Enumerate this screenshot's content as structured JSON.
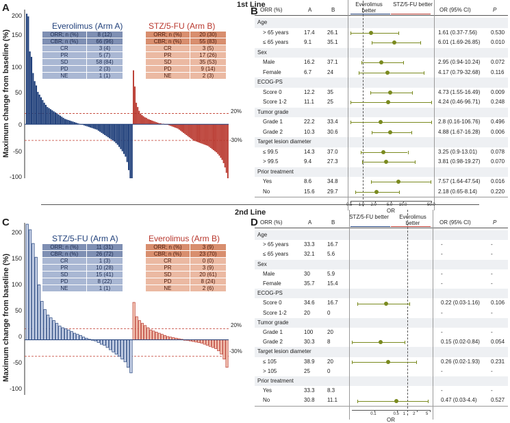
{
  "top_title": "1st Line",
  "bottom_title": "2nd Line",
  "panels": {
    "A": "A",
    "B": "B",
    "C": "C",
    "D": "D"
  },
  "ylabel": "Maximum change from baseline (%)",
  "yticks": [
    "200",
    "150",
    "100",
    "50",
    "0",
    "-50",
    "-100"
  ],
  "ref_lines": [
    "20%",
    "-30%"
  ],
  "A": {
    "arm_left": {
      "title": "Everolimus (Arm A)",
      "rows": [
        [
          "ORR; n (%)",
          "8 (12)"
        ],
        [
          "CBR; n (%)",
          "66 (96)"
        ],
        [
          "CR",
          "3 (4)"
        ],
        [
          "PR",
          "5 (7)"
        ],
        [
          "SD",
          "58 (84)"
        ],
        [
          "PD",
          "2 (3)"
        ],
        [
          "NE",
          "1 (1)"
        ]
      ]
    },
    "arm_right": {
      "title": "STZ/5-FU (Arm B)",
      "rows": [
        [
          "ORR; n (%)",
          "20 (30)"
        ],
        [
          "CBR; n (%)",
          "55 (83)"
        ],
        [
          "CR",
          "3 (5)"
        ],
        [
          "PR",
          "17 (26)"
        ],
        [
          "SD",
          "35 (53)"
        ],
        [
          "PD",
          "9 (14)"
        ],
        [
          "NE",
          "2 (3)"
        ]
      ]
    }
  },
  "C": {
    "arm_left": {
      "title": "STZ/5-FU (Arm A)",
      "rows": [
        [
          "ORR; n (%)",
          "11 (31)"
        ],
        [
          "CBR; n (%)",
          "26 (72)"
        ],
        [
          "CR",
          "1 (3)"
        ],
        [
          "PR",
          "10 (28)"
        ],
        [
          "SD",
          "15 (41)"
        ],
        [
          "PD",
          "8 (22)"
        ],
        [
          "NE",
          "1 (1)"
        ]
      ]
    },
    "arm_right": {
      "title": "Everolimus (Arm B)",
      "rows": [
        [
          "ORR; n (%)",
          "3 (9)"
        ],
        [
          "CBR; n (%)",
          "23 (70)"
        ],
        [
          "CR",
          "0 (0)"
        ],
        [
          "PR",
          "3 (9)"
        ],
        [
          "SD",
          "20 (61)"
        ],
        [
          "PD",
          "8 (24)"
        ],
        [
          "NE",
          "2 (6)"
        ]
      ]
    }
  },
  "B": {
    "headers": {
      "orr": "ORR (%)",
      "a": "A",
      "b": "B",
      "left": "Everolimus better",
      "right": "STZ/5-FU better",
      "or": "OR (95% CI)",
      "p": "P"
    },
    "axis_label": "OR",
    "ticks": [
      "0.5",
      "1.0",
      "2.0",
      "5.0",
      "10.0",
      "50.0"
    ],
    "rows": [
      {
        "label": "Age",
        "header": true
      },
      {
        "label": "> 65 years",
        "a": "17.4",
        "b": "26.1",
        "or": "1.61 (0.37-7.56)",
        "p": "0.530"
      },
      {
        "label": "≤ 65 years",
        "a": "9.1",
        "b": "35.1",
        "or": "6.01 (1.69-26.85)",
        "p": "0.010"
      },
      {
        "label": "Sex",
        "header": true
      },
      {
        "label": "Male",
        "a": "16.2",
        "b": "37.1",
        "or": "2.95 (0.94-10.24)",
        "p": "0.072"
      },
      {
        "label": "Female",
        "a": "6.7",
        "b": "24",
        "or": "4.17 (0.79-32.68)",
        "p": "0.116"
      },
      {
        "label": "ECOG-PS",
        "header": true
      },
      {
        "label": "Score 0",
        "a": "12.2",
        "b": "35",
        "or": "4.73 (1.55-16.49)",
        "p": "0.009"
      },
      {
        "label": "Score 1-2",
        "a": "11.1",
        "b": "25",
        "or": "4.24 (0.46-96.71)",
        "p": "0.248"
      },
      {
        "label": "Tumor grade",
        "header": true
      },
      {
        "label": "Grade 1",
        "a": "22.2",
        "b": "33.4",
        "or": "2.8 (0.16-106.76)",
        "p": "0.496"
      },
      {
        "label": "Grade 2",
        "a": "10.3",
        "b": "30.6",
        "or": "4.88 (1.67-16.28)",
        "p": "0.006"
      },
      {
        "label": "Target lesion diameter",
        "header": true
      },
      {
        "label": "≤ 99.5",
        "a": "14.3",
        "b": "37.0",
        "or": "3.25 (0.9-13.01)",
        "p": "0.078"
      },
      {
        "label": "> 99.5",
        "a": "9.4",
        "b": "27.3",
        "or": "3.81 (0.98-19.27)",
        "p": "0.070"
      },
      {
        "label": "Prior treatment",
        "header": true
      },
      {
        "label": "Yes",
        "a": "8.6",
        "b": "34.8",
        "or": "7.57 (1.64-47.54)",
        "p": "0.016"
      },
      {
        "label": "No",
        "a": "15.6",
        "b": "29.7",
        "or": "2.18 (0.65-8.14)",
        "p": "0.220"
      }
    ]
  },
  "D": {
    "headers": {
      "orr": "ORR (%)",
      "a": "A",
      "b": "B",
      "left": "STZ/5-FU better",
      "right": "Everolimus better",
      "or": "OR (95% CI)",
      "p": "P"
    },
    "axis_label": "OR",
    "ticks": [
      "0.1",
      "0.5",
      "1",
      "2",
      "5"
    ],
    "rows": [
      {
        "label": "Age",
        "header": true
      },
      {
        "label": "> 65 years",
        "a": "33.3",
        "b": "16.7",
        "or": "-",
        "p": "-"
      },
      {
        "label": "≤ 65 years",
        "a": "32.1",
        "b": "5.6",
        "or": "-",
        "p": "-"
      },
      {
        "label": "Sex",
        "header": true
      },
      {
        "label": "Male",
        "a": "30",
        "b": "5.9",
        "or": "-",
        "p": "-"
      },
      {
        "label": "Female",
        "a": "35.7",
        "b": "15.4",
        "or": "-",
        "p": "-"
      },
      {
        "label": "ECOG-PS",
        "header": true
      },
      {
        "label": "Score 0",
        "a": "34.6",
        "b": "16.7",
        "or": "0.22 (0.03-1.16)",
        "p": "0.106"
      },
      {
        "label": "Score 1-2",
        "a": "20",
        "b": "0",
        "or": "-",
        "p": "-"
      },
      {
        "label": "Tumor grade",
        "header": true
      },
      {
        "label": "Grade 1",
        "a": "100",
        "b": "20",
        "or": "-",
        "p": "-"
      },
      {
        "label": "Grade 2",
        "a": "30.3",
        "b": "8",
        "or": "0.15 (0.02-0.84)",
        "p": "0.054"
      },
      {
        "label": "Target lesion diameter",
        "header": true
      },
      {
        "label": "≤ 105",
        "a": "38.9",
        "b": "20",
        "or": "0.26 (0.02-1.93)",
        "p": "0.231"
      },
      {
        "label": "> 105",
        "a": "25",
        "b": "0",
        "or": "-",
        "p": "-"
      },
      {
        "label": "Prior treatment",
        "header": true
      },
      {
        "label": "Yes",
        "a": "33.3",
        "b": "8.3",
        "or": "-",
        "p": "-"
      },
      {
        "label": "No",
        "a": "30.8",
        "b": "11.1",
        "or": "0.47 (0.03-4.4)",
        "p": "0.527"
      }
    ]
  },
  "chart_data": [
    {
      "type": "bar",
      "panel": "A",
      "title": "1st Line waterfall",
      "ylabel": "Maximum change from baseline (%)",
      "ylim": [
        -100,
        210
      ],
      "reference_lines": [
        20,
        -30
      ],
      "series": [
        {
          "name": "Everolimus (Arm A)",
          "color": "#1f3f7a",
          "values": [
            205,
            200,
            135,
            125,
            95,
            80,
            72,
            60,
            55,
            50,
            45,
            40,
            36,
            32,
            30,
            28,
            26,
            24,
            22,
            20,
            18,
            16,
            14,
            12,
            10,
            9,
            8,
            7,
            6,
            5,
            4,
            3,
            2,
            1,
            0,
            -1,
            -2,
            -3,
            -4,
            -5,
            -6,
            -7,
            -8,
            -9,
            -10,
            -12,
            -14,
            -16,
            -18,
            -20,
            -22,
            -24,
            -26,
            -28,
            -30,
            -32,
            -35,
            -38,
            -42,
            -46,
            -50,
            -55,
            -60,
            -70,
            -85,
            -100,
            -100
          ]
        },
        {
          "name": "STZ/5-FU (Arm B)",
          "color": "#b8362c",
          "values": [
            100,
            70,
            40,
            32,
            25,
            20,
            17,
            15,
            13,
            12,
            10,
            9,
            8,
            7,
            6,
            5,
            4,
            3,
            2,
            2,
            1,
            1,
            0,
            0,
            -1,
            -2,
            -3,
            -4,
            -5,
            -6,
            -7,
            -8,
            -10,
            -12,
            -14,
            -16,
            -18,
            -20,
            -22,
            -24,
            -26,
            -28,
            -30,
            -31,
            -32,
            -33,
            -34,
            -35,
            -36,
            -37,
            -38,
            -39,
            -40,
            -42,
            -44,
            -46,
            -48,
            -50,
            -52,
            -55,
            -58,
            -62,
            -66,
            -72,
            -80,
            -90,
            -100
          ]
        }
      ]
    },
    {
      "type": "bar",
      "panel": "C",
      "title": "2nd Line waterfall",
      "ylabel": "Maximum change from baseline (%)",
      "ylim": [
        -100,
        210
      ],
      "reference_lines": [
        20,
        -30
      ],
      "series": [
        {
          "name": "STZ/5-FU (Arm A)",
          "color": "#1f3f7a",
          "values": [
            210,
            200,
            175,
            150,
            100,
            70,
            55,
            45,
            40,
            35,
            30,
            25,
            22,
            20,
            18,
            15,
            12,
            10,
            8,
            5,
            3,
            1,
            0,
            -2,
            -5,
            -8,
            -10,
            -14,
            -18,
            -22,
            -26,
            -30,
            -35,
            -40,
            -50,
            -60
          ]
        },
        {
          "name": "Everolimus (Arm B)",
          "color": "#b8362c",
          "values": [
            68,
            42,
            35,
            30,
            26,
            22,
            18,
            16,
            14,
            12,
            10,
            8,
            6,
            5,
            4,
            3,
            2,
            1,
            0,
            -1,
            -2,
            -3,
            -4,
            -5,
            -6,
            -8,
            -10,
            -12,
            -14,
            -16,
            -20,
            -26,
            -35,
            -50
          ]
        }
      ]
    },
    {
      "type": "forest",
      "panel": "B",
      "xlabel": "OR",
      "xscale": "log",
      "xlim": [
        0.5,
        50
      ],
      "reference_line": 1,
      "points": [
        {
          "label": "> 65 years",
          "or": 1.61,
          "lo": 0.37,
          "hi": 7.56
        },
        {
          "label": "≤ 65 years",
          "or": 6.01,
          "lo": 1.69,
          "hi": 26.85
        },
        {
          "label": "Male",
          "or": 2.95,
          "lo": 0.94,
          "hi": 10.24
        },
        {
          "label": "Female",
          "or": 4.17,
          "lo": 0.79,
          "hi": 32.68
        },
        {
          "label": "Score 0",
          "or": 4.73,
          "lo": 1.55,
          "hi": 16.49
        },
        {
          "label": "Score 1-2",
          "or": 4.24,
          "lo": 0.46,
          "hi": 96.71
        },
        {
          "label": "Grade 1",
          "or": 2.8,
          "lo": 0.16,
          "hi": 106.76
        },
        {
          "label": "Grade 2",
          "or": 4.88,
          "lo": 1.67,
          "hi": 16.28
        },
        {
          "label": "≤ 99.5",
          "or": 3.25,
          "lo": 0.9,
          "hi": 13.01
        },
        {
          "label": "> 99.5",
          "or": 3.81,
          "lo": 0.98,
          "hi": 19.27
        },
        {
          "label": "Yes",
          "or": 7.57,
          "lo": 1.64,
          "hi": 47.54
        },
        {
          "label": "No",
          "or": 2.18,
          "lo": 0.65,
          "hi": 8.14
        }
      ]
    },
    {
      "type": "forest",
      "panel": "D",
      "xlabel": "OR",
      "xscale": "log",
      "xlim": [
        0.02,
        5
      ],
      "reference_line": 1,
      "points": [
        {
          "label": "Score 0",
          "or": 0.22,
          "lo": 0.03,
          "hi": 1.16
        },
        {
          "label": "Grade 2",
          "or": 0.15,
          "lo": 0.02,
          "hi": 0.84
        },
        {
          "label": "≤ 105",
          "or": 0.26,
          "lo": 0.02,
          "hi": 1.93
        },
        {
          "label": "No",
          "or": 0.47,
          "lo": 0.03,
          "hi": 4.4
        }
      ]
    }
  ]
}
